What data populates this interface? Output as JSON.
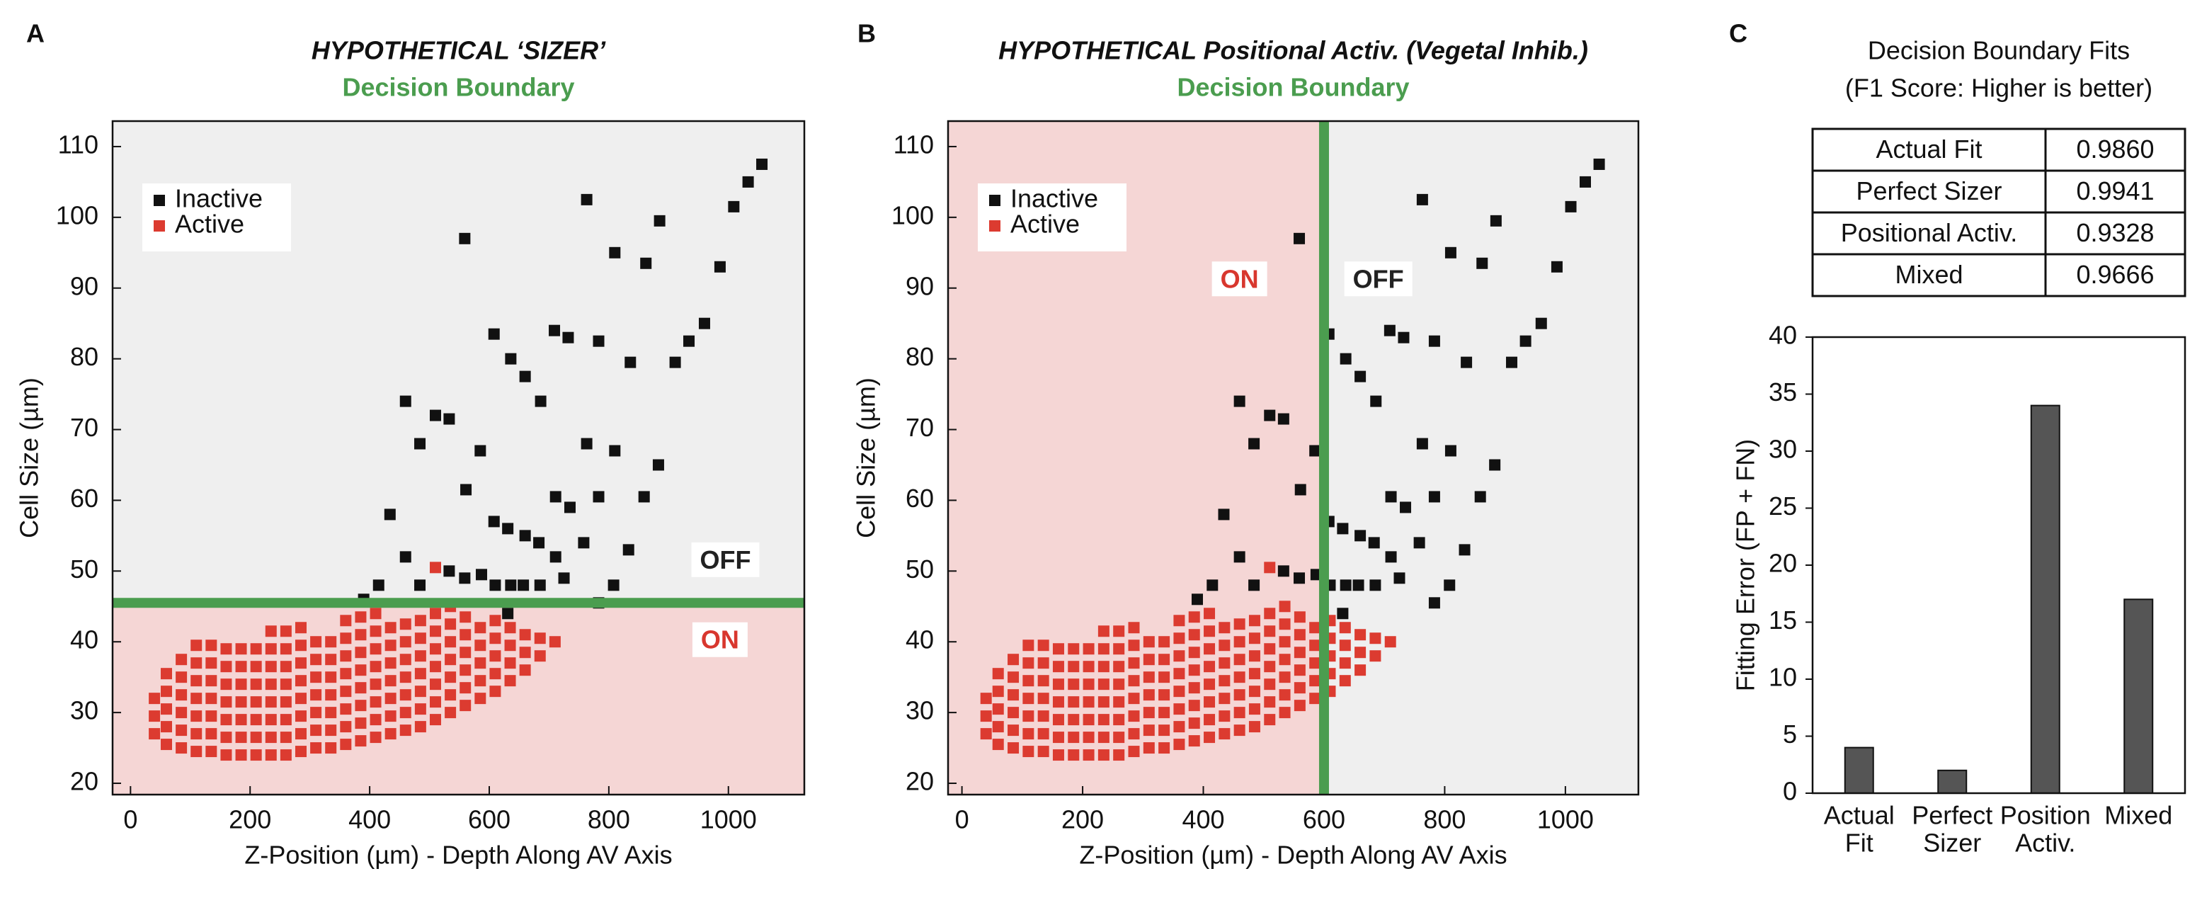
{
  "chart_data": [
    {
      "type": "scatter",
      "label": "A",
      "title": "HYPOTHETICAL ‘SIZER’",
      "subtitle": "Decision Boundary",
      "subtitle_color": "#4b9d4f",
      "xlabel": "Z-Position (µm) - Depth Along AV Axis",
      "ylabel": "Cell Size (µm)",
      "xlim": [
        -30,
        1127
      ],
      "ylim": [
        18.4,
        113.6
      ],
      "xticks": [
        0,
        200,
        400,
        600,
        800,
        1000
      ],
      "yticks": [
        20,
        30,
        40,
        50,
        60,
        70,
        80,
        90,
        100,
        110
      ],
      "legend": "upper left",
      "series": [
        {
          "name": "Inactive",
          "color": "#111111",
          "x": [
            559,
            763,
            1056,
            1033,
            1009,
            885,
            810,
            862,
            986,
            608,
            709,
            732,
            783,
            960,
            934,
            911,
            636,
            836,
            660,
            686,
            460,
            510,
            533,
            484,
            585,
            763,
            810,
            883,
            561,
            434,
            711,
            735,
            783,
            859,
            608,
            631,
            660,
            683,
            711,
            833,
            758,
            460,
            484,
            533,
            559,
            587,
            610,
            636,
            657,
            685,
            725,
            808,
            415,
            390,
            631,
            783
          ],
          "values": [
            97,
            102.5,
            107.5,
            105,
            101.5,
            99.5,
            95,
            93.5,
            93,
            83.5,
            84,
            83,
            82.5,
            85,
            82.5,
            79.5,
            80,
            79.5,
            77.5,
            74,
            74,
            72,
            71.5,
            68,
            67,
            68,
            67,
            65,
            61.5,
            58,
            60.5,
            59,
            60.5,
            60.5,
            57,
            56,
            55,
            54,
            52,
            53,
            54,
            52,
            48,
            50,
            49,
            49.5,
            48,
            48,
            48,
            48,
            49,
            48,
            48,
            46,
            44,
            45.5
          ]
        },
        {
          "name": "Active",
          "color": "#dc3b30",
          "x": [
            40,
            40,
            40,
            60,
            60,
            60,
            60,
            60,
            85,
            85,
            85,
            85,
            85,
            85,
            110,
            110,
            110,
            110,
            110,
            110,
            110,
            135,
            135,
            135,
            135,
            135,
            135,
            135,
            160,
            160,
            160,
            160,
            160,
            160,
            160,
            185,
            185,
            185,
            185,
            185,
            185,
            185,
            210,
            210,
            210,
            210,
            210,
            210,
            210,
            235,
            235,
            235,
            235,
            235,
            235,
            235,
            235,
            260,
            260,
            260,
            260,
            260,
            260,
            260,
            260,
            285,
            285,
            285,
            285,
            285,
            285,
            285,
            285,
            310,
            310,
            310,
            310,
            310,
            310,
            310,
            335,
            335,
            335,
            335,
            335,
            335,
            335,
            360,
            360,
            360,
            360,
            360,
            360,
            360,
            360,
            385,
            385,
            385,
            385,
            385,
            385,
            385,
            385,
            410,
            410,
            410,
            410,
            410,
            410,
            410,
            410,
            435,
            435,
            435,
            435,
            435,
            435,
            435,
            460,
            460,
            460,
            460,
            460,
            460,
            460,
            485,
            485,
            485,
            485,
            485,
            485,
            485,
            510,
            510,
            510,
            510,
            510,
            510,
            510,
            535,
            535,
            535,
            535,
            535,
            535,
            535,
            560,
            560,
            560,
            560,
            560,
            560,
            585,
            585,
            585,
            585,
            585,
            610,
            610,
            610,
            610,
            610,
            635,
            635,
            635,
            635,
            660,
            660,
            660,
            685,
            685,
            710,
            510
          ],
          "values": [
            27,
            29.5,
            32,
            25.5,
            28,
            30.5,
            33,
            35.5,
            25,
            27.5,
            30,
            32.5,
            35,
            37.5,
            24.5,
            27,
            29.5,
            32,
            34.5,
            37,
            39.5,
            24.5,
            27,
            29.5,
            32,
            34.5,
            37,
            39.5,
            24,
            26.5,
            29,
            31.5,
            34,
            36.5,
            39,
            24,
            26.5,
            29,
            31.5,
            34,
            36.5,
            39,
            24,
            26.5,
            29,
            31.5,
            34,
            36.5,
            39,
            24,
            26.5,
            29,
            31.5,
            34,
            36.5,
            39,
            41.5,
            24,
            26.5,
            29,
            31.5,
            34,
            36.5,
            39,
            41.5,
            24.5,
            27,
            29.5,
            32,
            34.5,
            37,
            39.5,
            42,
            25,
            27.5,
            30,
            32.5,
            35,
            37.5,
            40,
            25,
            27.5,
            30,
            32.5,
            35,
            37.5,
            40,
            25.5,
            28,
            30.5,
            33,
            35.5,
            38,
            40.5,
            43,
            26,
            28.5,
            31,
            33.5,
            36,
            38.5,
            41,
            43.5,
            26.5,
            29,
            31.5,
            34,
            36.5,
            39,
            41.5,
            44,
            27,
            29.5,
            32,
            34.5,
            37,
            39.5,
            42,
            27.5,
            30,
            32.5,
            35,
            37.5,
            40,
            42.5,
            28,
            30.5,
            33,
            35.5,
            38,
            40.5,
            43,
            29,
            31.5,
            34,
            36.5,
            39,
            41.5,
            44,
            30,
            32.5,
            35,
            37.5,
            40,
            42.5,
            45,
            31,
            33.5,
            36,
            38.5,
            41,
            43.5,
            32,
            34.5,
            37,
            39.5,
            42,
            33,
            35.5,
            38,
            40.5,
            43,
            34.5,
            37,
            39.5,
            42,
            36,
            38.5,
            41,
            38,
            40.5,
            40,
            50.5
          ]
        }
      ],
      "boundary": {
        "axis": "y",
        "value": 45.5,
        "color": "#4b9d4f"
      },
      "regions": [
        {
          "side": "above",
          "color": "#efefef"
        },
        {
          "side": "below",
          "color": "#f5d6d5"
        }
      ],
      "annotations": [
        {
          "text": "OFF",
          "x": 995,
          "y": 51.3,
          "color": "#222222"
        },
        {
          "text": "ON",
          "x": 986,
          "y": 40,
          "color": "#d8372e"
        }
      ]
    },
    {
      "type": "scatter",
      "label": "B",
      "title": "HYPOTHETICAL Positional Activ. (Vegetal Inhib.)",
      "subtitle": "Decision Boundary",
      "subtitle_color": "#4b9d4f",
      "xlabel": "Z-Position (µm) - Depth Along AV Axis",
      "ylabel": "Cell Size (µm)",
      "xlim": [
        -23,
        1121
      ],
      "ylim": [
        18.4,
        113.6
      ],
      "xticks": [
        0,
        200,
        400,
        600,
        800,
        1000
      ],
      "yticks": [
        20,
        30,
        40,
        50,
        60,
        70,
        80,
        90,
        100,
        110
      ],
      "legend": "upper left",
      "series": [
        {
          "name": "Inactive",
          "color": "#111111",
          "x": [
            559,
            763,
            1056,
            1033,
            1009,
            885,
            810,
            862,
            986,
            608,
            709,
            732,
            783,
            960,
            934,
            911,
            636,
            836,
            660,
            686,
            460,
            510,
            533,
            484,
            585,
            763,
            810,
            883,
            561,
            434,
            711,
            735,
            783,
            859,
            608,
            631,
            660,
            683,
            711,
            833,
            758,
            460,
            484,
            533,
            559,
            587,
            610,
            636,
            657,
            685,
            725,
            808,
            415,
            390,
            631,
            783
          ],
          "values": [
            97,
            102.5,
            107.5,
            105,
            101.5,
            99.5,
            95,
            93.5,
            93,
            83.5,
            84,
            83,
            82.5,
            85,
            82.5,
            79.5,
            80,
            79.5,
            77.5,
            74,
            74,
            72,
            71.5,
            68,
            67,
            68,
            67,
            65,
            61.5,
            58,
            60.5,
            59,
            60.5,
            60.5,
            57,
            56,
            55,
            54,
            52,
            53,
            54,
            52,
            48,
            50,
            49,
            49.5,
            48,
            48,
            48,
            48,
            49,
            48,
            48,
            46,
            44,
            45.5
          ]
        },
        {
          "name": "Active",
          "color": "#dc3b30",
          "x": [
            40,
            40,
            40,
            60,
            60,
            60,
            60,
            60,
            85,
            85,
            85,
            85,
            85,
            85,
            110,
            110,
            110,
            110,
            110,
            110,
            110,
            135,
            135,
            135,
            135,
            135,
            135,
            135,
            160,
            160,
            160,
            160,
            160,
            160,
            160,
            185,
            185,
            185,
            185,
            185,
            185,
            185,
            210,
            210,
            210,
            210,
            210,
            210,
            210,
            235,
            235,
            235,
            235,
            235,
            235,
            235,
            235,
            260,
            260,
            260,
            260,
            260,
            260,
            260,
            260,
            285,
            285,
            285,
            285,
            285,
            285,
            285,
            285,
            310,
            310,
            310,
            310,
            310,
            310,
            310,
            335,
            335,
            335,
            335,
            335,
            335,
            335,
            360,
            360,
            360,
            360,
            360,
            360,
            360,
            360,
            385,
            385,
            385,
            385,
            385,
            385,
            385,
            385,
            410,
            410,
            410,
            410,
            410,
            410,
            410,
            410,
            435,
            435,
            435,
            435,
            435,
            435,
            435,
            460,
            460,
            460,
            460,
            460,
            460,
            460,
            485,
            485,
            485,
            485,
            485,
            485,
            485,
            510,
            510,
            510,
            510,
            510,
            510,
            510,
            535,
            535,
            535,
            535,
            535,
            535,
            535,
            560,
            560,
            560,
            560,
            560,
            560,
            585,
            585,
            585,
            585,
            585,
            610,
            610,
            610,
            610,
            610,
            635,
            635,
            635,
            635,
            660,
            660,
            660,
            685,
            685,
            710,
            510
          ],
          "values": [
            27,
            29.5,
            32,
            25.5,
            28,
            30.5,
            33,
            35.5,
            25,
            27.5,
            30,
            32.5,
            35,
            37.5,
            24.5,
            27,
            29.5,
            32,
            34.5,
            37,
            39.5,
            24.5,
            27,
            29.5,
            32,
            34.5,
            37,
            39.5,
            24,
            26.5,
            29,
            31.5,
            34,
            36.5,
            39,
            24,
            26.5,
            29,
            31.5,
            34,
            36.5,
            39,
            24,
            26.5,
            29,
            31.5,
            34,
            36.5,
            39,
            24,
            26.5,
            29,
            31.5,
            34,
            36.5,
            39,
            41.5,
            24,
            26.5,
            29,
            31.5,
            34,
            36.5,
            39,
            41.5,
            24.5,
            27,
            29.5,
            32,
            34.5,
            37,
            39.5,
            42,
            25,
            27.5,
            30,
            32.5,
            35,
            37.5,
            40,
            25,
            27.5,
            30,
            32.5,
            35,
            37.5,
            40,
            25.5,
            28,
            30.5,
            33,
            35.5,
            38,
            40.5,
            43,
            26,
            28.5,
            31,
            33.5,
            36,
            38.5,
            41,
            43.5,
            26.5,
            29,
            31.5,
            34,
            36.5,
            39,
            41.5,
            44,
            27,
            29.5,
            32,
            34.5,
            37,
            39.5,
            42,
            27.5,
            30,
            32.5,
            35,
            37.5,
            40,
            42.5,
            28,
            30.5,
            33,
            35.5,
            38,
            40.5,
            43,
            29,
            31.5,
            34,
            36.5,
            39,
            41.5,
            44,
            30,
            32.5,
            35,
            37.5,
            40,
            42.5,
            45,
            31,
            33.5,
            36,
            38.5,
            41,
            43.5,
            32,
            34.5,
            37,
            39.5,
            42,
            33,
            35.5,
            38,
            40.5,
            43,
            34.5,
            37,
            39.5,
            42,
            36,
            38.5,
            41,
            38,
            40.5,
            40,
            50.5
          ]
        }
      ],
      "boundary": {
        "axis": "x",
        "value": 600,
        "color": "#4b9d4f"
      },
      "regions": [
        {
          "side": "left",
          "color": "#f5d6d5"
        },
        {
          "side": "right",
          "color": "#efefef"
        }
      ],
      "annotations": [
        {
          "text": "ON",
          "x": 460,
          "y": 91,
          "color": "#d8372e"
        },
        {
          "text": "OFF",
          "x": 690,
          "y": 91,
          "color": "#222222"
        }
      ]
    },
    {
      "type": "bar",
      "label": "C",
      "table": {
        "title": [
          "Decision Boundary Fits",
          "(F1 Score: Higher is better)"
        ],
        "rows": [
          [
            "Actual Fit",
            "0.9860"
          ],
          [
            "Perfect Sizer",
            "0.9941"
          ],
          [
            "Positional Activ.",
            "0.9328"
          ],
          [
            "Mixed",
            "0.9666"
          ]
        ]
      },
      "categories": [
        [
          "Actual",
          "Fit"
        ],
        [
          "Perfect",
          "Sizer"
        ],
        [
          "Position",
          "Activ."
        ],
        [
          "Mixed"
        ]
      ],
      "values": [
        4,
        2,
        34,
        17
      ],
      "color": "#555555",
      "ylabel": "Fitting Error (FP + FN)",
      "ylim": [
        0,
        40
      ],
      "yticks": [
        0,
        5,
        10,
        15,
        20,
        25,
        30,
        35,
        40
      ]
    }
  ]
}
